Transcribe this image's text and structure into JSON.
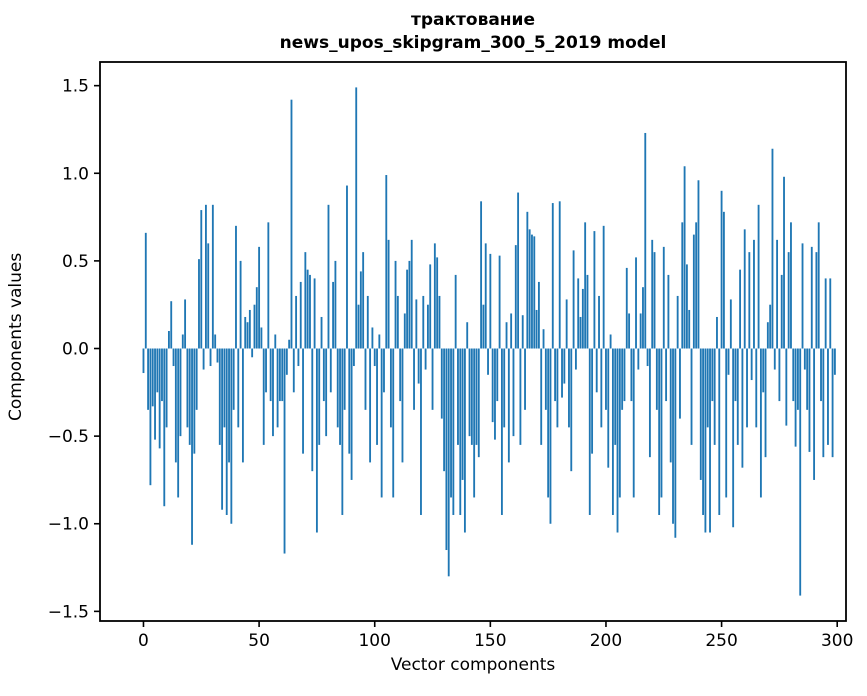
{
  "figure": {
    "title_line1": "трактование",
    "title_line2": "news_upos_skipgram_300_5_2019 model"
  },
  "chart_data": {
    "type": "bar",
    "title": "трактование",
    "subtitle": "news_upos_skipgram_300_5_2019 model",
    "xlabel": "Vector components",
    "ylabel": "Components values",
    "bar_color": "#1f77b4",
    "axis_color": "#000000",
    "grid": false,
    "legend": null,
    "x_start": 0,
    "xticks": [
      0,
      50,
      100,
      150,
      200,
      250,
      300
    ],
    "xtick_labels": [
      "0",
      "50",
      "100",
      "150",
      "200",
      "250",
      "300"
    ],
    "yticks": [
      1.5,
      1.0,
      0.5,
      0.0,
      -0.5,
      -1.0,
      -1.5
    ],
    "ytick_labels": [
      "1.5",
      "1.0",
      "0.5",
      "0.0",
      "−0.5",
      "−1.0",
      "−1.5"
    ],
    "xlim": [
      -18.8,
      303.8
    ],
    "ylim": [
      -1.555,
      1.635
    ],
    "values": [
      -0.14,
      0.66,
      -0.35,
      -0.78,
      -0.33,
      -0.52,
      -0.25,
      -0.57,
      -0.3,
      -0.9,
      -0.45,
      0.1,
      0.27,
      -0.1,
      -0.65,
      -0.85,
      -0.5,
      0.08,
      0.28,
      -0.45,
      -0.55,
      -1.12,
      -0.6,
      -0.35,
      0.51,
      0.79,
      -0.12,
      0.82,
      0.6,
      -0.1,
      0.82,
      0.08,
      -0.08,
      -0.55,
      -0.92,
      -0.45,
      -0.95,
      -0.65,
      -1.0,
      -0.35,
      0.7,
      -0.45,
      0.5,
      -0.65,
      0.18,
      0.15,
      0.22,
      -0.05,
      0.25,
      0.35,
      0.58,
      0.12,
      -0.55,
      -0.25,
      0.72,
      -0.3,
      -0.5,
      0.08,
      -0.45,
      -0.3,
      -0.3,
      -1.17,
      -0.15,
      0.05,
      1.42,
      -0.25,
      0.3,
      -0.1,
      0.38,
      -0.6,
      0.55,
      0.45,
      0.42,
      -0.7,
      0.4,
      -1.05,
      -0.55,
      0.18,
      -0.3,
      -0.5,
      0.82,
      -0.25,
      0.38,
      0.5,
      -0.45,
      -0.55,
      -0.95,
      -0.35,
      0.93,
      -0.6,
      -0.75,
      -0.1,
      1.49,
      0.25,
      0.44,
      0.55,
      -0.35,
      0.3,
      -0.65,
      0.12,
      -0.1,
      -0.55,
      0.08,
      -0.85,
      -0.25,
      0.99,
      0.62,
      -0.45,
      -0.85,
      0.5,
      0.3,
      -0.3,
      -0.65,
      0.2,
      0.45,
      0.5,
      0.62,
      -0.35,
      0.28,
      -0.2,
      -0.95,
      0.3,
      -0.12,
      0.25,
      0.48,
      -0.35,
      0.6,
      0.52,
      0.3,
      -0.4,
      -0.7,
      -1.15,
      -1.3,
      -0.85,
      -0.95,
      0.42,
      -0.55,
      -0.95,
      -0.75,
      -1.05,
      0.15,
      -0.5,
      -0.55,
      -0.85,
      -0.55,
      -0.62,
      0.84,
      0.25,
      0.6,
      -0.15,
      0.54,
      -0.42,
      -0.52,
      -0.3,
      0.53,
      -0.95,
      -0.45,
      0.15,
      -0.65,
      0.2,
      -0.5,
      0.59,
      0.89,
      -0.55,
      0.19,
      -0.35,
      0.78,
      0.68,
      0.65,
      0.64,
      0.22,
      0.38,
      -0.55,
      0.11,
      -0.35,
      -0.85,
      -1.0,
      0.83,
      -0.3,
      -0.45,
      0.84,
      -0.28,
      -0.2,
      0.28,
      -0.45,
      -0.7,
      0.56,
      -0.12,
      0.4,
      0.18,
      0.34,
      0.72,
      0.42,
      -0.95,
      -0.6,
      0.67,
      -0.25,
      0.3,
      -0.45,
      0.7,
      -0.35,
      -0.68,
      0.08,
      -0.95,
      -0.55,
      -1.05,
      -0.85,
      -0.35,
      -0.3,
      0.46,
      0.2,
      -0.3,
      -0.85,
      0.52,
      -0.12,
      0.2,
      0.35,
      1.23,
      -0.1,
      -0.62,
      0.62,
      0.55,
      -0.35,
      -0.95,
      -0.85,
      0.58,
      -0.3,
      0.42,
      -0.65,
      -1.0,
      -1.08,
      0.3,
      -0.4,
      0.72,
      1.04,
      0.48,
      0.22,
      -0.55,
      0.65,
      0.72,
      0.96,
      -0.75,
      -0.95,
      -1.05,
      -0.45,
      -1.05,
      -0.3,
      -0.55,
      0.18,
      -0.95,
      0.9,
      0.78,
      -0.85,
      -0.15,
      0.28,
      -1.02,
      -0.3,
      -0.55,
      0.45,
      -0.68,
      0.68,
      -0.45,
      0.55,
      -0.18,
      0.62,
      -0.45,
      0.82,
      -0.85,
      -0.25,
      -0.62,
      0.15,
      0.25,
      1.14,
      -0.12,
      0.62,
      -0.3,
      0.42,
      0.98,
      -0.44,
      0.55,
      0.72,
      -0.3,
      -0.56,
      -0.35,
      -1.41,
      0.6,
      -0.12,
      -0.35,
      -0.59,
      0.58,
      -0.75,
      0.55,
      0.72,
      -0.3,
      -0.62,
      0.4,
      -0.55,
      0.4,
      -0.62,
      -0.15
    ]
  }
}
